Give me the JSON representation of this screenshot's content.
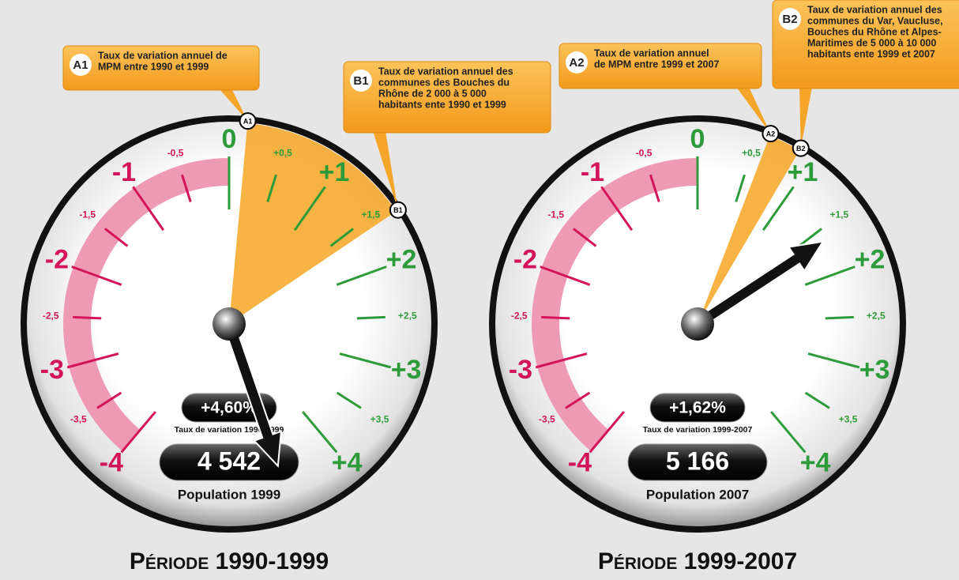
{
  "chart_data": [
    {
      "type": "gauge",
      "title": "Période 1990-1999",
      "lim": [
        -4,
        4
      ],
      "negative_color": "#d4145a",
      "positive_color": "#2e9b3a",
      "band_color": "#ee9ab5",
      "sector_color": "#f6a623",
      "ticks": [
        {
          "value": -4,
          "label": "-4"
        },
        {
          "value": -3.5,
          "label": "-3,5"
        },
        {
          "value": -3,
          "label": "-3"
        },
        {
          "value": -2.5,
          "label": "-2,5"
        },
        {
          "value": -2,
          "label": "-2"
        },
        {
          "value": -1.5,
          "label": "-1,5"
        },
        {
          "value": -1,
          "label": "-1"
        },
        {
          "value": -0.5,
          "label": "-0,5"
        },
        0,
        {
          "value": 0.5,
          "label": "+0,5"
        },
        {
          "value": 1,
          "label": "+1"
        },
        {
          "value": 1.5,
          "label": "+1,5"
        },
        {
          "value": 2,
          "label": "+2"
        },
        {
          "value": 2.5,
          "label": "+2,5"
        },
        {
          "value": 3,
          "label": "+3"
        },
        {
          "value": 3.5,
          "label": "+3,5"
        },
        {
          "value": 4,
          "label": "+4"
        }
      ],
      "value": 4.6,
      "value_label": "+4,60%",
      "value_caption": "Taux de variation 1990-1999",
      "population": "4 542",
      "population_caption": "Population 1999",
      "markers": [
        {
          "name": "A1",
          "value": 0.15,
          "text": [
            "Taux de variation annuel de",
            "MPM entre 1990 et 1999"
          ]
        },
        {
          "name": "B1",
          "value": 1.6,
          "text": [
            "Taux de variation annuel des",
            "communes des Bouches du",
            "Rhône de 2 000 à 5 000",
            "habitants ente 1990 et 1999"
          ]
        }
      ]
    },
    {
      "type": "gauge",
      "title": "Période 1999-2007",
      "lim": [
        -4,
        4
      ],
      "negative_color": "#d4145a",
      "positive_color": "#2e9b3a",
      "band_color": "#ee9ab5",
      "sector_color": "#f6a623",
      "ticks": [
        {
          "value": -4,
          "label": "-4"
        },
        {
          "value": -3.5,
          "label": "-3,5"
        },
        {
          "value": -3,
          "label": "-3"
        },
        {
          "value": -2.5,
          "label": "-2,5"
        },
        {
          "value": -2,
          "label": "-2"
        },
        {
          "value": -1.5,
          "label": "-1,5"
        },
        {
          "value": -1,
          "label": "-1"
        },
        {
          "value": -0.5,
          "label": "-0,5"
        },
        0,
        {
          "value": 0.5,
          "label": "+0,5"
        },
        {
          "value": 1,
          "label": "+1"
        },
        {
          "value": 1.5,
          "label": "+1,5"
        },
        {
          "value": 2,
          "label": "+2"
        },
        {
          "value": 2.5,
          "label": "+2,5"
        },
        {
          "value": 3,
          "label": "+3"
        },
        {
          "value": 3.5,
          "label": "+3,5"
        },
        {
          "value": 4,
          "label": "+4"
        }
      ],
      "value": 1.62,
      "value_label": "+1,62%",
      "value_caption": "Taux de variation 1999-2007",
      "population": "5 166",
      "population_caption": "Population 2007",
      "markers": [
        {
          "name": "A2",
          "value": 0.6,
          "text": [
            "Taux de variation annuel",
            "de MPM entre 1999 et 2007"
          ]
        },
        {
          "name": "B2",
          "value": 0.87,
          "text": [
            "Taux de variation annuel des",
            "communes du Var, Vaucluse,",
            "Bouches du Rhône et Alpes-",
            "Maritimes de 5 000 à 10 000",
            "habitants ente 1999 et 2007"
          ]
        }
      ]
    }
  ]
}
